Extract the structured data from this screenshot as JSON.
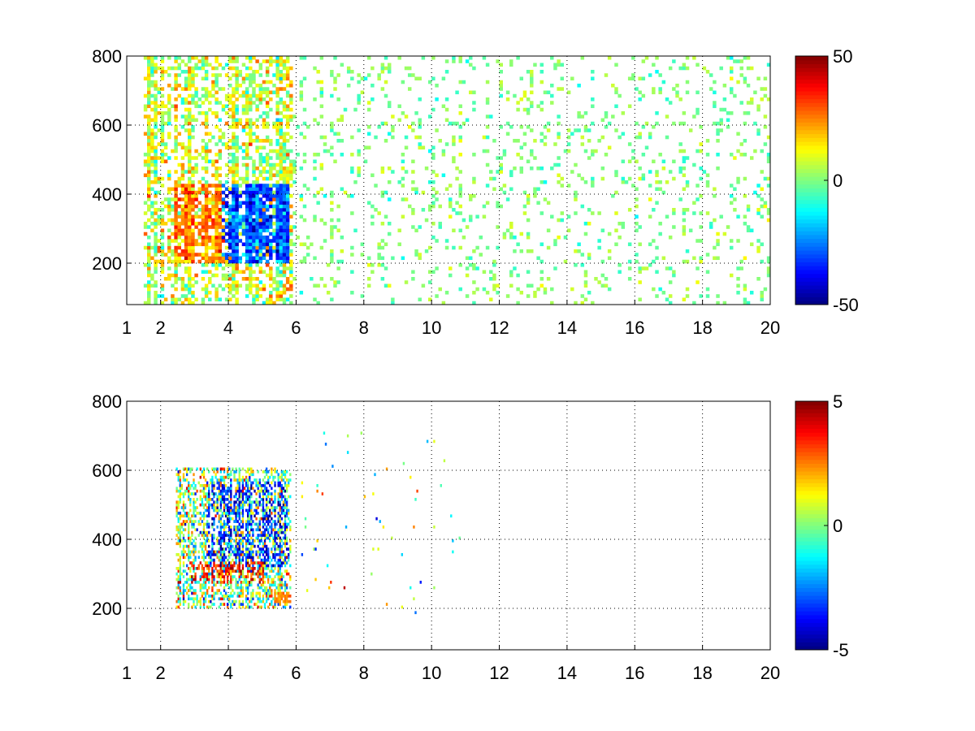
{
  "figure": {
    "background": "#ffffff",
    "colormap": "jet"
  },
  "chart_data": [
    {
      "type": "heatmap",
      "title": "",
      "xlabel": "",
      "ylabel": "",
      "xlim": [
        1,
        20
      ],
      "ylim": [
        80,
        800
      ],
      "x_ticks": [
        1,
        2,
        4,
        6,
        8,
        10,
        12,
        14,
        16,
        18,
        20
      ],
      "x_tick_labels": [
        "1",
        "2",
        "4",
        "6",
        "8",
        "10",
        "12",
        "14",
        "16",
        "18",
        "20"
      ],
      "y_ticks": [
        200,
        400,
        600,
        800
      ],
      "y_tick_labels": [
        "200",
        "400",
        "600",
        "800"
      ],
      "grid": true,
      "grid_style": "dotted",
      "colorbar": {
        "min": -50,
        "max": 50,
        "tick_labels": [
          "50",
          "0",
          "-50"
        ],
        "tick_values": [
          50,
          0,
          -50
        ]
      },
      "cell": {
        "dx": 0.1,
        "dy": 10
      },
      "nan_color": "#ffffff",
      "value_regions": [
        {
          "note": "scattered data between ~1.5 and 5.8, mostly positive (yellow/orange)",
          "x": [
            1.5,
            5.8
          ],
          "y": [
            80,
            800
          ],
          "density": 0.55,
          "mean": 8,
          "spread": 14
        },
        {
          "note": "strong positive band",
          "x": [
            2.4,
            3.9
          ],
          "y": [
            200,
            420
          ],
          "density": 0.9,
          "mean": 25,
          "spread": 10
        },
        {
          "note": "strong negative band",
          "x": [
            3.8,
            5.7
          ],
          "y": [
            200,
            420
          ],
          "density": 0.9,
          "mean": -30,
          "spread": 12
        },
        {
          "note": "near-zero sparse columns",
          "x": [
            5.8,
            20
          ],
          "y": [
            80,
            800
          ],
          "density": 0.12,
          "mean": 0,
          "spread": 7
        }
      ]
    },
    {
      "type": "heatmap",
      "title": "",
      "xlabel": "",
      "ylabel": "",
      "xlim": [
        1,
        20
      ],
      "ylim": [
        80,
        800
      ],
      "x_ticks": [
        1,
        2,
        4,
        6,
        8,
        10,
        12,
        14,
        16,
        18,
        20
      ],
      "x_tick_labels": [
        "1",
        "2",
        "4",
        "6",
        "8",
        "10",
        "12",
        "14",
        "16",
        "18",
        "20"
      ],
      "y_ticks": [
        200,
        400,
        600,
        800
      ],
      "y_tick_labels": [
        "200",
        "400",
        "600",
        "800"
      ],
      "grid": true,
      "grid_style": "dotted",
      "colorbar": {
        "min": -5,
        "max": 5,
        "tick_labels": [
          "5",
          "0",
          "-5"
        ],
        "tick_values": [
          5,
          0,
          -5
        ]
      },
      "cell": {
        "dx": 0.05,
        "dy": 8
      },
      "nan_color": "#ffffff",
      "value_regions": [
        {
          "note": "main cluster of values",
          "x": [
            2.4,
            5.8
          ],
          "y": [
            200,
            600
          ],
          "density": 0.45,
          "mean": 0,
          "spread": 2.5
        },
        {
          "note": "negative streaks",
          "x": [
            3.3,
            5.7
          ],
          "y": [
            320,
            560
          ],
          "density": 0.35,
          "mean": -3.5,
          "spread": 1.2
        },
        {
          "note": "positive band",
          "x": [
            2.8,
            5.0
          ],
          "y": [
            270,
            330
          ],
          "density": 0.4,
          "mean": 3.5,
          "spread": 1.0
        },
        {
          "note": "orange patch at ~5.5",
          "x": [
            5.3,
            5.8
          ],
          "y": [
            210,
            240
          ],
          "density": 0.9,
          "mean": 2.5,
          "spread": 0.4
        },
        {
          "note": "isolated points",
          "x": [
            6.0,
            11.0
          ],
          "y": [
            180,
            720
          ],
          "density": 0.01,
          "mean": 0,
          "spread": 3
        }
      ]
    }
  ]
}
